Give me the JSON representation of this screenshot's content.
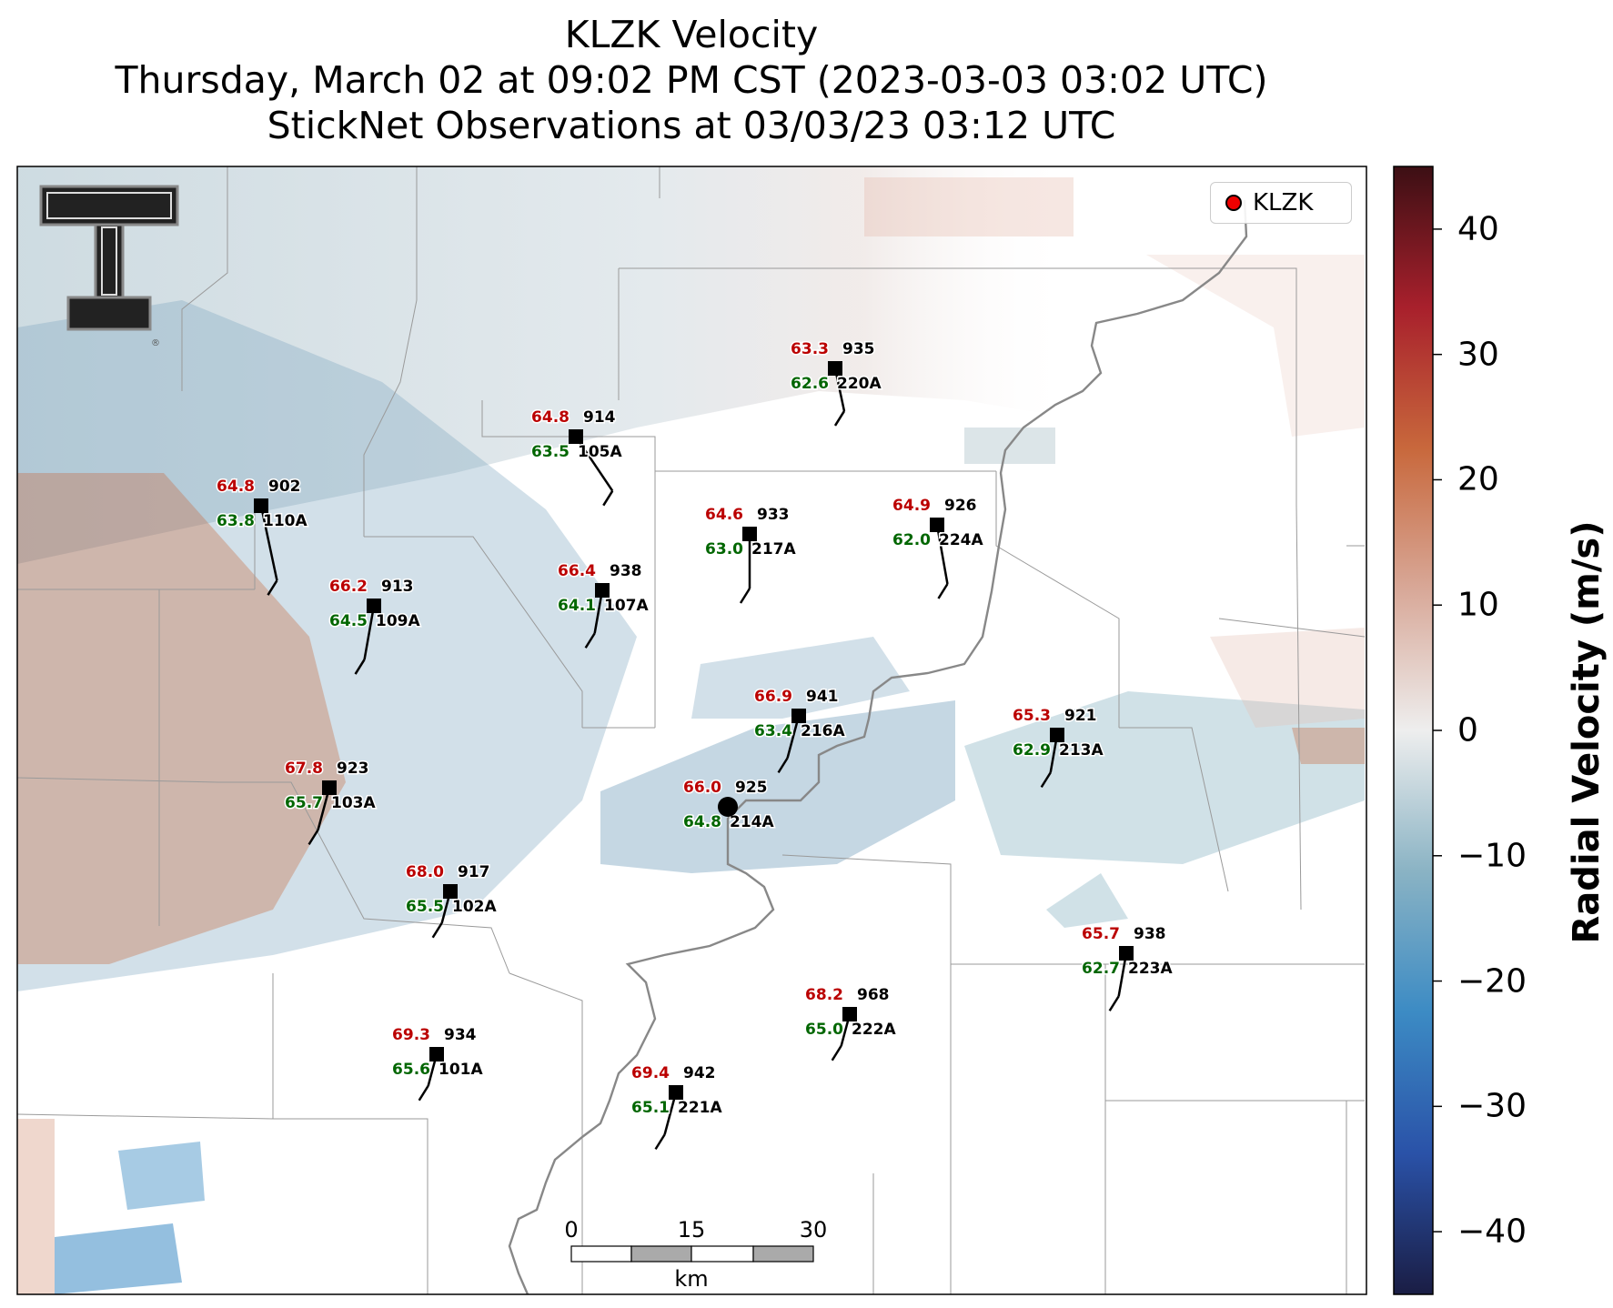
{
  "title": {
    "line1": "KLZK Velocity",
    "line2": "Thursday, March 02 at 09:02 PM CST (2023-03-03 03:02 UTC)",
    "line3": "StickNet Observations at 03/03/23 03:12 UTC"
  },
  "legend": {
    "label": "KLZK",
    "marker_color": "#ee0000"
  },
  "colorbar": {
    "label": "Radial Velocity (m/s)",
    "range": [
      -45,
      45
    ],
    "ticks": [
      "40",
      "30",
      "20",
      "10",
      "0",
      "−10",
      "−20",
      "−30",
      "−40"
    ],
    "colors": [
      "#1a1d44",
      "#2a52a8",
      "#3c8bc4",
      "#8ab3c4",
      "#eeeeee",
      "#d8a898",
      "#c8683c",
      "#a8202c",
      "#3c0f14"
    ]
  },
  "scalebar": {
    "ticks": [
      "0",
      "15",
      "30"
    ],
    "unit": "km"
  },
  "logo": {
    "text": "T"
  },
  "colors": {
    "temperature": "#bb0000",
    "dewpoint": "#006600",
    "station": "#000000"
  },
  "stations": [
    {
      "id": "220A",
      "temp": "63.3",
      "dew": "62.6",
      "pressure": "935"
    },
    {
      "id": "105A",
      "temp": "64.8",
      "dew": "63.5",
      "pressure": "914"
    },
    {
      "id": "110A",
      "temp": "64.8",
      "dew": "63.8",
      "pressure": "902"
    },
    {
      "id": "217A",
      "temp": "64.6",
      "dew": "63.0",
      "pressure": "933"
    },
    {
      "id": "224A",
      "temp": "64.9",
      "dew": "62.0",
      "pressure": "926"
    },
    {
      "id": "107A",
      "temp": "66.4",
      "dew": "64.1",
      "pressure": "938"
    },
    {
      "id": "109A",
      "temp": "66.2",
      "dew": "64.5",
      "pressure": "913"
    },
    {
      "id": "216A",
      "temp": "66.9",
      "dew": "63.4",
      "pressure": "941"
    },
    {
      "id": "213A",
      "temp": "65.3",
      "dew": "62.9",
      "pressure": "921"
    },
    {
      "id": "103A",
      "temp": "67.8",
      "dew": "65.7",
      "pressure": "923"
    },
    {
      "id": "214A",
      "temp": "66.0",
      "dew": "64.8",
      "pressure": "925"
    },
    {
      "id": "102A",
      "temp": "68.0",
      "dew": "65.5",
      "pressure": "917"
    },
    {
      "id": "223A",
      "temp": "65.7",
      "dew": "62.7",
      "pressure": "938"
    },
    {
      "id": "222A",
      "temp": "68.2",
      "dew": "65.0",
      "pressure": "968"
    },
    {
      "id": "101A",
      "temp": "69.3",
      "dew": "65.6",
      "pressure": "934"
    },
    {
      "id": "221A",
      "temp": "69.4",
      "dew": "65.1",
      "pressure": "942"
    }
  ]
}
